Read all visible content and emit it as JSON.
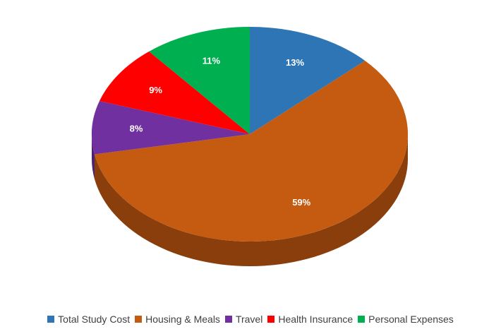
{
  "chart_data": {
    "type": "pie",
    "title": "",
    "start_angle_deg": 0,
    "direction": "clockwise",
    "three_d": true,
    "legend_position": "bottom",
    "labels_shown_as": "percent",
    "slices": [
      {
        "name": "Total Study Cost",
        "value": 13,
        "label": "13%",
        "color": "#2e75b6",
        "side_color": "#1f5489"
      },
      {
        "name": "Housing & Meals",
        "value": 59,
        "label": "59%",
        "color": "#c55a11",
        "side_color": "#8a3e0b"
      },
      {
        "name": "Travel",
        "value": 8,
        "label": "8%",
        "color": "#7030a0",
        "side_color": "#4d2070"
      },
      {
        "name": "Health Insurance",
        "value": 9,
        "label": "9%",
        "color": "#ff0000",
        "side_color": "#b30000"
      },
      {
        "name": "Personal Expenses",
        "value": 11,
        "label": "11%",
        "color": "#00b050",
        "side_color": "#007a37"
      }
    ]
  },
  "legend": {
    "items": [
      {
        "label": "Total Study Cost",
        "color": "#2e75b6"
      },
      {
        "label": "Housing & Meals",
        "color": "#c55a11"
      },
      {
        "label": "Travel",
        "color": "#7030a0"
      },
      {
        "label": "Health Insurance",
        "color": "#ff0000"
      },
      {
        "label": "Personal Expenses",
        "color": "#00b050"
      }
    ]
  }
}
